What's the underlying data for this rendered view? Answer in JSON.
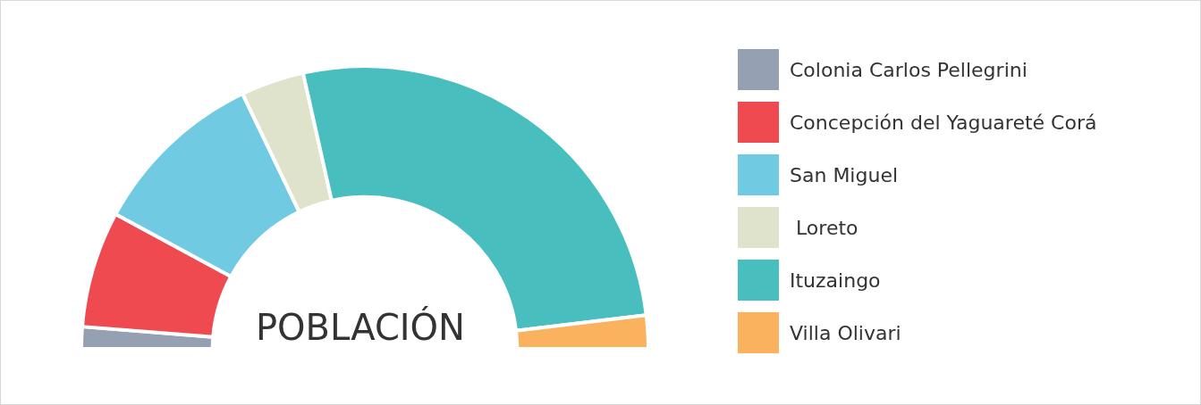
{
  "chart_data": {
    "type": "donut",
    "title": "POBLACIÓN",
    "categories": [
      "Colonia Carlos Pellegrini",
      "Concepción del Yaguareté Corá",
      "San Miguel",
      " Loreto",
      "Ituzaingo",
      "Villa Olivari"
    ],
    "values": [
      2.5,
      13.3,
      20,
      7.2,
      53.2,
      3.8
    ],
    "colors": [
      "#95a0b2",
      "#ef4a4f",
      "#70cbe2",
      "#e0e3cc",
      "#48bfbe",
      "#fbb25f"
    ],
    "legend": "right"
  }
}
